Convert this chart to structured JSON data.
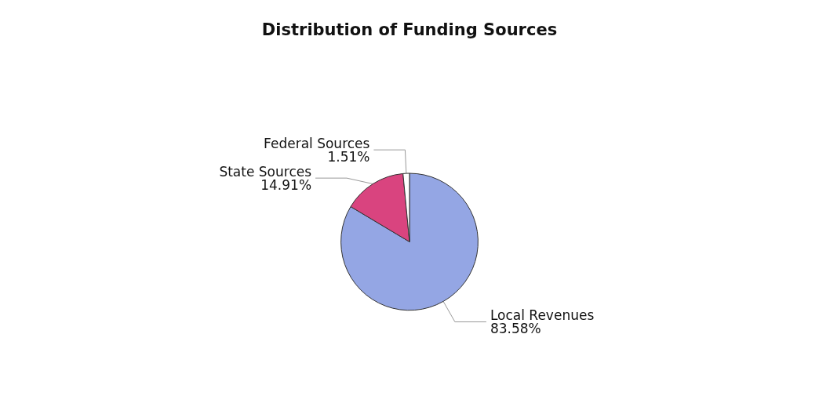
{
  "chart_data": {
    "type": "pie",
    "title": "Distribution of Funding Sources",
    "categories": [
      "Local Revenues",
      "State Sources",
      "Federal Sources"
    ],
    "values": [
      83.58,
      14.91,
      1.51
    ],
    "value_labels": [
      "83.58%",
      "14.91%",
      "1.51%"
    ],
    "colors": [
      "#94a6e4",
      "#d9447f",
      "#ffffff"
    ],
    "legend": false
  }
}
